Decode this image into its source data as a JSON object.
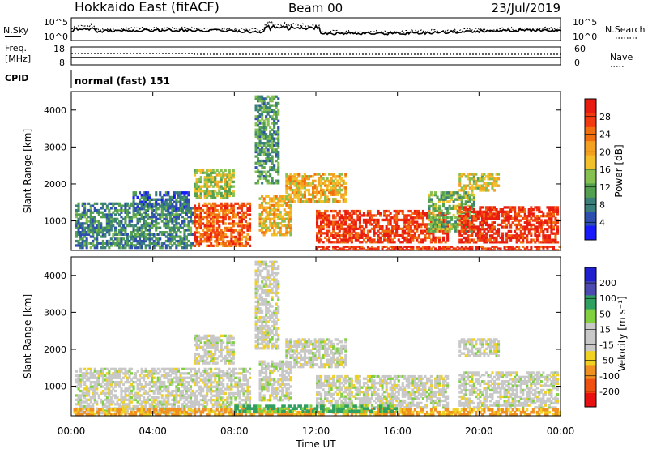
{
  "header": {
    "radar": "Hokkaido East (fitACF)",
    "beam": "Beam 00",
    "date": "23/Jul/2019"
  },
  "sky_panel": {
    "left_label": "N.Sky",
    "right_label": "N.Search",
    "left_ticks": [
      "10^5",
      "10^0"
    ],
    "right_ticks": [
      "10^5",
      "10^0"
    ]
  },
  "freq_panel": {
    "label_line1": "Freq.",
    "label_line2": "[MHz]",
    "left_ticks": [
      "18",
      "8"
    ],
    "right_ticks": [
      "60",
      "0"
    ],
    "right_label": "Nave"
  },
  "cpid": {
    "label": "CPID",
    "text": "normal (fast) 151"
  },
  "colors": {
    "power": [
      "#1a1aff",
      "#2f4fb0",
      "#3a7f7a",
      "#52a050",
      "#86c050",
      "#f2c02a",
      "#f4a020",
      "#f07010",
      "#f23a10",
      "#e81c10"
    ],
    "velocity": [
      "#2020d0",
      "#4a4ab0",
      "#30a060",
      "#80d040",
      "#c8c8c8",
      "#c8c8c8",
      "#f0d020",
      "#f09020",
      "#f05010",
      "#e81010"
    ]
  },
  "chart_data": [
    {
      "type": "heatmap",
      "title": "Power",
      "ylabel": "Slant Range [km]",
      "xlabel": "",
      "x_ticks": [
        "00:00",
        "04:00",
        "08:00",
        "12:00",
        "16:00",
        "20:00",
        "00:00"
      ],
      "y_ticks": [
        1000,
        2000,
        3000,
        4000
      ],
      "ylim": [
        200,
        4500
      ],
      "colorbar": {
        "label": "Power [dB]",
        "ticks": [
          "4",
          "8",
          "12",
          "16",
          "20",
          "24",
          "28"
        ]
      },
      "regions": [
        {
          "t": [
            0.2,
            6.0
          ],
          "r": [
            250,
            1500
          ],
          "value": 8
        },
        {
          "t": [
            3.0,
            5.8
          ],
          "r": [
            1300,
            1800
          ],
          "value": 6
        },
        {
          "t": [
            6.0,
            8.8
          ],
          "r": [
            300,
            1500
          ],
          "value": 24
        },
        {
          "t": [
            6.0,
            8.0
          ],
          "r": [
            1600,
            2400
          ],
          "value": 14
        },
        {
          "t": [
            9.2,
            10.8
          ],
          "r": [
            600,
            1700
          ],
          "value": 18
        },
        {
          "t": [
            10.5,
            13.5
          ],
          "r": [
            1500,
            2300
          ],
          "value": 18
        },
        {
          "t": [
            12.0,
            18.5
          ],
          "r": [
            400,
            1300
          ],
          "value": 26
        },
        {
          "t": [
            17.5,
            19.8
          ],
          "r": [
            700,
            1800
          ],
          "value": 12
        },
        {
          "t": [
            19.0,
            23.9
          ],
          "r": [
            400,
            1400
          ],
          "value": 27
        },
        {
          "t": [
            19.0,
            21.0
          ],
          "r": [
            1800,
            2300
          ],
          "value": 16
        },
        {
          "t": [
            9.0,
            10.2
          ],
          "r": [
            2000,
            4400
          ],
          "value": 10
        },
        {
          "t": [
            12.0,
            24.0
          ],
          "r": [
            200,
            320
          ],
          "value": 27
        }
      ]
    },
    {
      "type": "heatmap",
      "title": "Velocity",
      "ylabel": "Slant Range [km]",
      "xlabel": "Time UT",
      "x_ticks": [
        "00:00",
        "04:00",
        "08:00",
        "12:00",
        "16:00",
        "20:00",
        "00:00"
      ],
      "y_ticks": [
        1000,
        2000,
        3000,
        4000
      ],
      "ylim": [
        200,
        4500
      ],
      "colorbar": {
        "label": "Velocity [m s⁻¹]",
        "ticks": [
          "200",
          "100",
          "50",
          "15",
          "-15",
          "-50",
          "-100",
          "-200"
        ]
      },
      "regions": [
        {
          "t": [
            0.2,
            6.0
          ],
          "r": [
            250,
            1500
          ],
          "value": 0
        },
        {
          "t": [
            6.0,
            8.8
          ],
          "r": [
            300,
            1500
          ],
          "value": 0
        },
        {
          "t": [
            6.0,
            8.0
          ],
          "r": [
            1600,
            2400
          ],
          "value": 0
        },
        {
          "t": [
            9.2,
            10.8
          ],
          "r": [
            600,
            1700
          ],
          "value": 0
        },
        {
          "t": [
            10.5,
            13.5
          ],
          "r": [
            1500,
            2300
          ],
          "value": 0
        },
        {
          "t": [
            12.0,
            18.5
          ],
          "r": [
            400,
            1300
          ],
          "value": 0
        },
        {
          "t": [
            19.0,
            23.9
          ],
          "r": [
            400,
            1400
          ],
          "value": 0
        },
        {
          "t": [
            19.0,
            21.0
          ],
          "r": [
            1800,
            2300
          ],
          "value": 0
        },
        {
          "t": [
            0.0,
            24.0
          ],
          "r": [
            200,
            400
          ],
          "value": -40
        },
        {
          "t": [
            8.0,
            16.0
          ],
          "r": [
            300,
            500
          ],
          "value": 40
        },
        {
          "t": [
            9.0,
            10.2
          ],
          "r": [
            2000,
            4400
          ],
          "value": 0
        }
      ]
    }
  ],
  "time_axis_label": "Time UT"
}
